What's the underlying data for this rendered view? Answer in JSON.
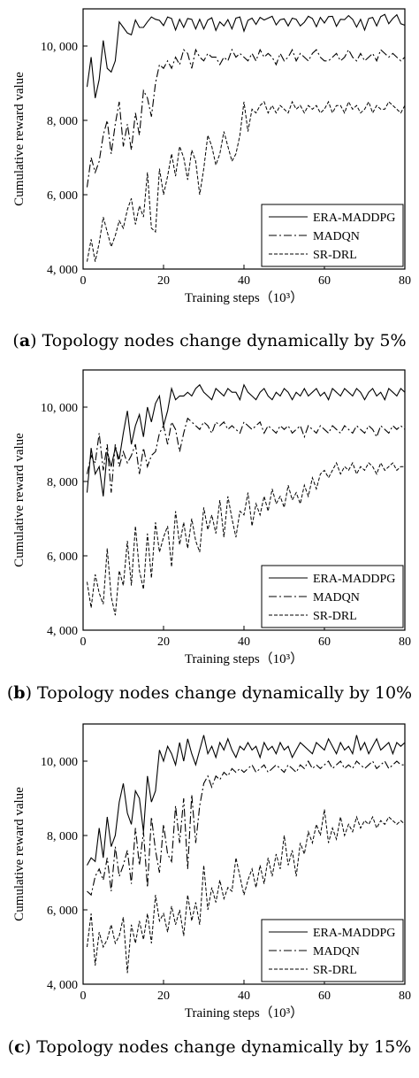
{
  "figure": {
    "panels": [
      {
        "letter": "a",
        "caption": "Topology nodes change dynamically by 5%"
      },
      {
        "letter": "b",
        "caption": "Topology nodes change dynamically by 10%"
      },
      {
        "letter": "c",
        "caption": "Topology nodes change dynamically by 15%"
      }
    ]
  },
  "chart_data": [
    {
      "type": "line",
      "xlabel": "Training steps（10³）",
      "ylabel": "Cumulative reward value",
      "xlim": [
        0,
        80
      ],
      "ylim": [
        4000,
        11000
      ],
      "xticks": [
        "0",
        "20",
        "40",
        "60",
        "80"
      ],
      "yticks": [
        "4, 000",
        "6, 000",
        "8, 000",
        "10, 000"
      ],
      "legend_position": "bottom-right",
      "x": [
        1,
        2,
        3,
        4,
        5,
        6,
        7,
        8,
        9,
        10,
        11,
        12,
        13,
        14,
        15,
        16,
        17,
        18,
        19,
        20,
        21,
        22,
        23,
        24,
        25,
        26,
        27,
        28,
        29,
        30,
        31,
        32,
        33,
        34,
        35,
        36,
        37,
        38,
        39,
        40,
        41,
        42,
        43,
        44,
        45,
        46,
        47,
        48,
        49,
        50,
        51,
        52,
        53,
        54,
        55,
        56,
        57,
        58,
        59,
        60,
        61,
        62,
        63,
        64,
        65,
        66,
        67,
        68,
        69,
        70,
        71,
        72,
        73,
        74,
        75,
        76,
        77,
        78,
        79,
        80
      ],
      "series": [
        {
          "name": "ERA-MADDPG",
          "style": "solid",
          "values": [
            8900,
            9700,
            8600,
            9100,
            10150,
            9400,
            9300,
            9600,
            10650,
            10500,
            10350,
            10300,
            10700,
            10500,
            10500,
            10650,
            10780,
            10720,
            10690,
            10550,
            10780,
            10740,
            10430,
            10720,
            10500,
            10740,
            10720,
            10460,
            10720,
            10460,
            10700,
            10760,
            10420,
            10650,
            10540,
            10710,
            10460,
            10750,
            10780,
            10400,
            10690,
            10750,
            10580,
            10770,
            10700,
            10750,
            10800,
            10570,
            10710,
            10730,
            10540,
            10750,
            10720,
            10540,
            10640,
            10800,
            10740,
            10520,
            10770,
            10620,
            10790,
            10800,
            10530,
            10720,
            10710,
            10820,
            10720,
            10510,
            10720,
            10430,
            10740,
            10770,
            10540,
            10790,
            10850,
            10600,
            10740,
            10840,
            10600,
            10560
          ]
        },
        {
          "name": "MADQN",
          "style": "dashdot",
          "values": [
            6200,
            7000,
            6600,
            6900,
            7600,
            8000,
            7100,
            7900,
            8500,
            7300,
            7900,
            7200,
            8200,
            7600,
            8800,
            8600,
            8100,
            9000,
            9500,
            9400,
            9600,
            9400,
            9700,
            9500,
            9900,
            9800,
            9400,
            9900,
            9700,
            9600,
            9800,
            9700,
            9700,
            9500,
            9700,
            9600,
            9900,
            9700,
            9800,
            9700,
            9600,
            9800,
            9600,
            9900,
            9700,
            9800,
            9700,
            9500,
            9800,
            9600,
            9700,
            9900,
            9600,
            9800,
            9700,
            9600,
            9800,
            9900,
            9700,
            9600,
            9600,
            9700,
            9800,
            9600,
            9700,
            9900,
            9700,
            9600,
            9800,
            9600,
            9700,
            9800,
            9600,
            9900,
            9800,
            9700,
            9800,
            9700,
            9600,
            9700
          ]
        },
        {
          "name": "SR-DRL",
          "style": "dashed",
          "values": [
            4200,
            4800,
            4200,
            4700,
            5400,
            5000,
            4600,
            4900,
            5300,
            5100,
            5600,
            5900,
            5200,
            5700,
            5400,
            6600,
            5100,
            5000,
            6700,
            6000,
            6500,
            7100,
            6500,
            7300,
            7000,
            6400,
            7200,
            6900,
            6000,
            6700,
            7600,
            7300,
            6800,
            7100,
            7700,
            7300,
            6900,
            7100,
            7600,
            8500,
            7700,
            8300,
            8200,
            8400,
            8500,
            8200,
            8400,
            8200,
            8400,
            8300,
            8200,
            8500,
            8300,
            8400,
            8200,
            8400,
            8300,
            8400,
            8200,
            8300,
            8500,
            8200,
            8400,
            8400,
            8200,
            8500,
            8300,
            8400,
            8200,
            8300,
            8500,
            8200,
            8400,
            8300,
            8300,
            8500,
            8400,
            8300,
            8200,
            8400
          ]
        }
      ]
    },
    {
      "type": "line",
      "xlabel": "Training steps（10³）",
      "ylabel": "Cumulative reward value",
      "xlim": [
        0,
        80
      ],
      "ylim": [
        4000,
        11000
      ],
      "xticks": [
        "0",
        "20",
        "40",
        "60",
        "80"
      ],
      "yticks": [
        "4, 000",
        "6, 000",
        "8, 000",
        "10, 000"
      ],
      "legend_position": "bottom-right",
      "x": [
        1,
        2,
        3,
        4,
        5,
        6,
        7,
        8,
        9,
        10,
        11,
        12,
        13,
        14,
        15,
        16,
        17,
        18,
        19,
        20,
        21,
        22,
        23,
        24,
        25,
        26,
        27,
        28,
        29,
        30,
        31,
        32,
        33,
        34,
        35,
        36,
        37,
        38,
        39,
        40,
        41,
        42,
        43,
        44,
        45,
        46,
        47,
        48,
        49,
        50,
        51,
        52,
        53,
        54,
        55,
        56,
        57,
        58,
        59,
        60,
        61,
        62,
        63,
        64,
        65,
        66,
        67,
        68,
        69,
        70,
        71,
        72,
        73,
        74,
        75,
        76,
        77,
        78,
        79,
        80
      ],
      "series": [
        {
          "name": "ERA-MADDPG",
          "style": "solid",
          "values": [
            7700,
            8900,
            8200,
            8400,
            7600,
            8800,
            8400,
            8900,
            8600,
            9300,
            9900,
            9000,
            9500,
            9800,
            9200,
            10000,
            9600,
            10100,
            10300,
            9500,
            9900,
            10500,
            10200,
            10300,
            10300,
            10400,
            10300,
            10500,
            10600,
            10400,
            10300,
            10200,
            10500,
            10400,
            10300,
            10500,
            10400,
            10400,
            10200,
            10600,
            10400,
            10300,
            10200,
            10400,
            10500,
            10300,
            10200,
            10400,
            10300,
            10500,
            10400,
            10200,
            10400,
            10300,
            10500,
            10300,
            10400,
            10500,
            10300,
            10400,
            10200,
            10500,
            10400,
            10300,
            10500,
            10400,
            10300,
            10500,
            10400,
            10200,
            10400,
            10500,
            10300,
            10400,
            10200,
            10500,
            10400,
            10300,
            10500,
            10400
          ]
        },
        {
          "name": "MADQN",
          "style": "dashdot",
          "values": [
            8200,
            8700,
            8500,
            9300,
            8300,
            9000,
            7700,
            9000,
            8400,
            8800,
            8500,
            8700,
            9000,
            8200,
            8900,
            8400,
            8700,
            8800,
            9300,
            9500,
            9000,
            9600,
            9400,
            8800,
            9300,
            9700,
            9600,
            9500,
            9400,
            9600,
            9500,
            9300,
            9600,
            9500,
            9600,
            9400,
            9500,
            9400,
            9300,
            9600,
            9500,
            9400,
            9500,
            9600,
            9300,
            9500,
            9400,
            9300,
            9500,
            9400,
            9500,
            9300,
            9400,
            9500,
            9200,
            9500,
            9400,
            9300,
            9500,
            9400,
            9300,
            9500,
            9400,
            9300,
            9500,
            9400,
            9300,
            9500,
            9400,
            9300,
            9500,
            9400,
            9200,
            9500,
            9400,
            9300,
            9500,
            9400,
            9500,
            9400
          ]
        },
        {
          "name": "SR-DRL",
          "style": "dashed",
          "values": [
            5300,
            4600,
            5500,
            5000,
            4700,
            6200,
            4900,
            4400,
            5600,
            5200,
            6400,
            5200,
            6800,
            5600,
            5100,
            6600,
            5400,
            6900,
            6100,
            6500,
            6800,
            5700,
            7200,
            6300,
            6900,
            6200,
            7000,
            6400,
            6100,
            7300,
            6700,
            7100,
            6600,
            7500,
            6500,
            7600,
            7000,
            6500,
            7200,
            7100,
            7700,
            6800,
            7400,
            7100,
            7600,
            7200,
            7800,
            7400,
            7600,
            7300,
            7900,
            7500,
            7700,
            7400,
            7900,
            7600,
            8100,
            7800,
            8200,
            8300,
            8100,
            8300,
            8500,
            8200,
            8400,
            8300,
            8500,
            8200,
            8400,
            8300,
            8500,
            8400,
            8200,
            8500,
            8300,
            8400,
            8500,
            8300,
            8400,
            8400
          ]
        }
      ]
    },
    {
      "type": "line",
      "xlabel": "Training steps（10³）",
      "ylabel": "Cumulative reward value",
      "xlim": [
        0,
        80
      ],
      "ylim": [
        4000,
        11000
      ],
      "xticks": [
        "0",
        "20",
        "40",
        "60",
        "80"
      ],
      "yticks": [
        "4, 000",
        "6, 000",
        "8, 000",
        "10, 000"
      ],
      "legend_position": "bottom-right",
      "x": [
        1,
        2,
        3,
        4,
        5,
        6,
        7,
        8,
        9,
        10,
        11,
        12,
        13,
        14,
        15,
        16,
        17,
        18,
        19,
        20,
        21,
        22,
        23,
        24,
        25,
        26,
        27,
        28,
        29,
        30,
        31,
        32,
        33,
        34,
        35,
        36,
        37,
        38,
        39,
        40,
        41,
        42,
        43,
        44,
        45,
        46,
        47,
        48,
        49,
        50,
        51,
        52,
        53,
        54,
        55,
        56,
        57,
        58,
        59,
        60,
        61,
        62,
        63,
        64,
        65,
        66,
        67,
        68,
        69,
        70,
        71,
        72,
        73,
        74,
        75,
        76,
        77,
        78,
        79,
        80
      ],
      "series": [
        {
          "name": "ERA-MADDPG",
          "style": "solid",
          "values": [
            7200,
            7400,
            7300,
            8200,
            7400,
            8500,
            7700,
            8000,
            8900,
            9400,
            8600,
            8300,
            9200,
            9000,
            8100,
            9600,
            8900,
            9200,
            10300,
            10000,
            10400,
            10200,
            9900,
            10500,
            10000,
            10600,
            10200,
            9900,
            10300,
            10700,
            10200,
            10400,
            10100,
            10500,
            10300,
            10600,
            10300,
            10100,
            10400,
            10300,
            10500,
            10300,
            10400,
            10100,
            10500,
            10300,
            10400,
            10200,
            10500,
            10300,
            10400,
            10100,
            10300,
            10500,
            10400,
            10300,
            10200,
            10500,
            10400,
            10300,
            10600,
            10400,
            10200,
            10500,
            10300,
            10400,
            10200,
            10700,
            10300,
            10500,
            10200,
            10400,
            10600,
            10300,
            10400,
            10500,
            10200,
            10500,
            10400,
            10500
          ]
        },
        {
          "name": "MADQN",
          "style": "dashdot",
          "values": [
            6500,
            6400,
            6900,
            7100,
            6800,
            7400,
            6500,
            7700,
            6900,
            7200,
            7600,
            6700,
            8200,
            7200,
            8100,
            6600,
            8500,
            7600,
            7000,
            8300,
            7500,
            7300,
            8800,
            7800,
            9000,
            7100,
            9100,
            7800,
            8800,
            9400,
            9600,
            9300,
            9600,
            9500,
            9700,
            9600,
            9800,
            9700,
            9800,
            9700,
            9800,
            9900,
            9700,
            9800,
            9900,
            9700,
            9800,
            9900,
            9800,
            9700,
            9900,
            9800,
            9700,
            9900,
            9800,
            10000,
            9800,
            9900,
            9800,
            9900,
            10000,
            9800,
            9900,
            10000,
            9800,
            9900,
            9800,
            10000,
            9900,
            9800,
            9900,
            10000,
            9800,
            9900,
            10000,
            9800,
            9900,
            10000,
            9900,
            9900
          ]
        },
        {
          "name": "SR-DRL",
          "style": "dashed",
          "values": [
            5000,
            5900,
            4500,
            5400,
            5000,
            5200,
            5600,
            5100,
            5300,
            5800,
            4300,
            5600,
            5100,
            5700,
            5200,
            5900,
            5100,
            6400,
            5700,
            5900,
            5400,
            6100,
            5600,
            6000,
            5300,
            6400,
            5700,
            6200,
            5600,
            7200,
            6000,
            6600,
            6200,
            6800,
            6300,
            6600,
            6500,
            7400,
            6900,
            6400,
            6800,
            7100,
            6600,
            7200,
            6700,
            7400,
            6900,
            7500,
            7100,
            8000,
            7200,
            7600,
            6900,
            7800,
            7500,
            8100,
            7800,
            8300,
            8000,
            8700,
            7800,
            8200,
            7900,
            8500,
            8000,
            8300,
            8100,
            8500,
            8200,
            8400,
            8300,
            8500,
            8200,
            8400,
            8300,
            8500,
            8400,
            8300,
            8400,
            8300
          ]
        }
      ]
    }
  ]
}
